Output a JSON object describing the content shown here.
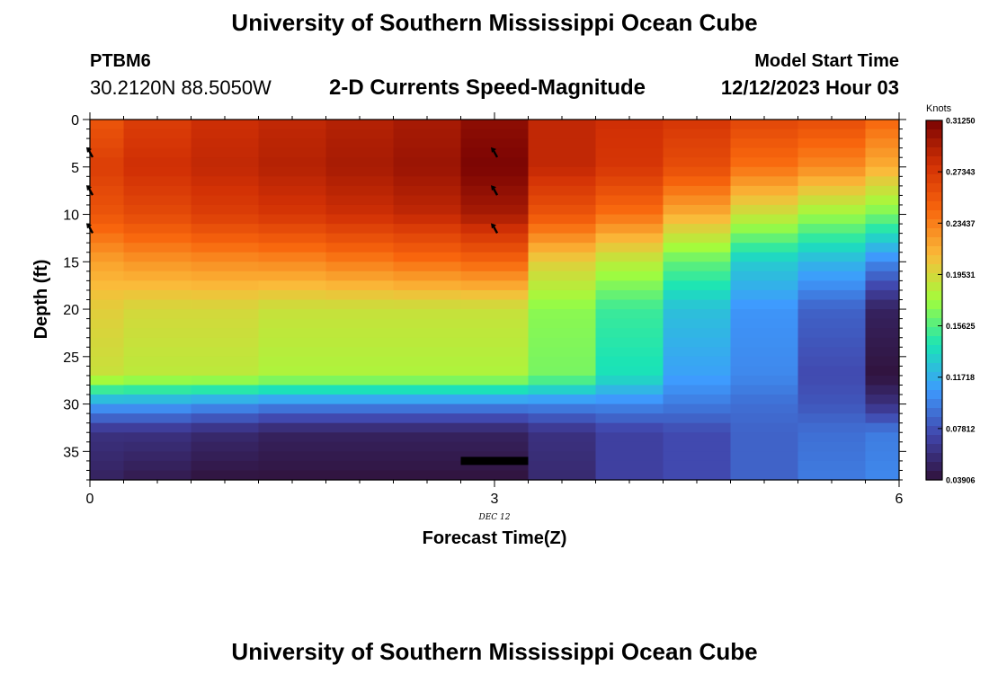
{
  "page": {
    "title": "University of Southern Mississippi Ocean Cube",
    "footer_title": "University of Southern Mississippi Ocean Cube",
    "station_id": "PTBM6",
    "station_coords": "30.2120N  88.5050W",
    "model_start_label": "Model Start Time",
    "model_start_time": "12/12/2023 Hour 03"
  },
  "chart_data": {
    "type": "heatmap",
    "title": "2-D Currents Speed-Magnitude",
    "xlabel": "Forecast Time(Z)",
    "ylabel": "Depth (ft)",
    "x_ticks": [
      "0",
      "3",
      "6"
    ],
    "x_tick_values": [
      0,
      3,
      6
    ],
    "x_date_label": "DEC 12",
    "y_ticks": [
      "0",
      "5",
      "10",
      "15",
      "20",
      "25",
      "30",
      "35"
    ],
    "y_tick_values": [
      0,
      5,
      10,
      15,
      20,
      25,
      30,
      35
    ],
    "xlim": [
      0,
      6
    ],
    "ylim": [
      38,
      0
    ],
    "colorbar": {
      "label": "Knots",
      "tick_labels": [
        "0.31250",
        "0.27343",
        "0.23437",
        "0.19531",
        "0.15625",
        "0.11718",
        "0.07812",
        "0.03906"
      ],
      "tick_values": [
        0.3125,
        0.27343,
        0.23437,
        0.19531,
        0.15625,
        0.11718,
        0.07812,
        0.03906
      ],
      "range": [
        0.03906,
        0.3125
      ],
      "colors": [
        "#30123b",
        "#4145ab",
        "#3e9bfe",
        "#1ae4b6",
        "#a2fc3c",
        "#fabb3a",
        "#f8660d",
        "#d23105",
        "#7a0403"
      ]
    },
    "x": [
      0,
      0.25,
      0.75,
      1.25,
      1.75,
      2.25,
      2.75,
      3.25,
      3.75,
      4.25,
      4.75,
      5.25,
      5.75,
      6.0
    ],
    "depth_profile": [
      0,
      5,
      10,
      15,
      20,
      27,
      30,
      33,
      38
    ],
    "columns": [
      [
        0.255,
        0.27,
        0.255,
        0.22,
        0.2,
        0.19,
        0.11,
        0.06,
        0.05
      ],
      [
        0.27,
        0.28,
        0.262,
        0.225,
        0.195,
        0.185,
        0.11,
        0.06,
        0.045
      ],
      [
        0.28,
        0.285,
        0.27,
        0.228,
        0.195,
        0.185,
        0.105,
        0.055,
        0.04
      ],
      [
        0.285,
        0.29,
        0.275,
        0.23,
        0.19,
        0.18,
        0.1,
        0.05,
        0.04
      ],
      [
        0.29,
        0.295,
        0.28,
        0.235,
        0.19,
        0.18,
        0.1,
        0.05,
        0.04
      ],
      [
        0.295,
        0.3,
        0.285,
        0.24,
        0.19,
        0.18,
        0.1,
        0.05,
        0.04
      ],
      [
        0.305,
        0.312,
        0.295,
        0.245,
        0.19,
        0.18,
        0.1,
        0.05,
        0.04
      ],
      [
        0.285,
        0.285,
        0.255,
        0.2,
        0.17,
        0.165,
        0.1,
        0.06,
        0.055
      ],
      [
        0.28,
        0.275,
        0.24,
        0.185,
        0.15,
        0.14,
        0.1,
        0.07,
        0.07
      ],
      [
        0.275,
        0.26,
        0.215,
        0.16,
        0.125,
        0.11,
        0.095,
        0.075,
        0.075
      ],
      [
        0.265,
        0.24,
        0.19,
        0.13,
        0.105,
        0.1,
        0.09,
        0.085,
        0.085
      ],
      [
        0.26,
        0.23,
        0.175,
        0.12,
        0.085,
        0.075,
        0.08,
        0.09,
        0.095
      ],
      [
        0.245,
        0.215,
        0.165,
        0.1,
        0.05,
        0.04,
        0.06,
        0.095,
        0.1
      ]
    ],
    "vectors": [
      {
        "x": 3.0,
        "depth": 3.5
      },
      {
        "x": 3.0,
        "depth": 7.5
      },
      {
        "x": 3.0,
        "depth": 11.5
      },
      {
        "x": 0.0,
        "depth": 3.5
      },
      {
        "x": 0.0,
        "depth": 7.5
      },
      {
        "x": 0.0,
        "depth": 11.5
      }
    ],
    "marker_bar": {
      "x_start": 2.75,
      "x_end": 3.25,
      "depth": 36.0
    }
  }
}
